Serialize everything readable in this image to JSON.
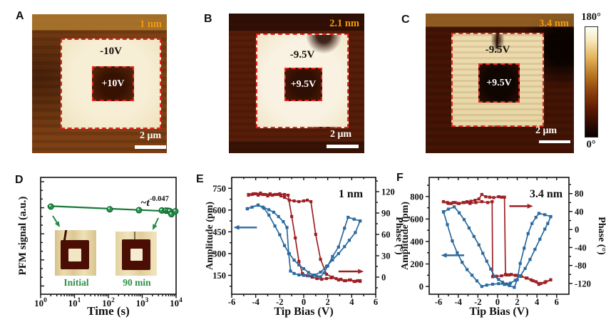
{
  "panels": {
    "a": {
      "letter": "A",
      "thickness": "1 nm",
      "outer_voltage": "-10V",
      "inner_voltage": "+10V",
      "scale_bar": "2 μm"
    },
    "b": {
      "letter": "B",
      "thickness": "2.1 nm",
      "outer_voltage": "-9.5V",
      "inner_voltage": "+9.5V",
      "scale_bar": "2 μm"
    },
    "c": {
      "letter": "C",
      "thickness": "3.4 nm",
      "outer_voltage": "-9.5V",
      "inner_voltage": "+9.5V",
      "scale_bar": "2 μm"
    },
    "colorbar": {
      "top_label": "180°",
      "bottom_label": "0°"
    },
    "d": {
      "letter": "D",
      "inset_left_label": "Initial",
      "inset_right_label": "90 min"
    },
    "e": {
      "letter": "E"
    },
    "f": {
      "letter": "F"
    }
  },
  "colors": {
    "dashed_box": "#e52520",
    "orange_label": "#f0990f",
    "blue_series": "#2b6a9e",
    "red_series": "#9e2024",
    "green_series": "#1f8b45",
    "axis": "#111111"
  },
  "chart_data": [
    {
      "id": "D",
      "type": "scatter",
      "xscale": "log",
      "xlabel": "Time (s)",
      "ylabel": "PFM signal (a.u.)",
      "xlim": [
        1,
        10000
      ],
      "ylim": [
        0,
        1.3
      ],
      "x_ticks": [
        1,
        10,
        100,
        1000,
        10000
      ],
      "x_tick_labels": [
        "10^0",
        "10^1",
        "10^2",
        "10^3",
        "10^4"
      ],
      "annotation": {
        "base": "~t",
        "exponent": "-0.047"
      },
      "series": [
        {
          "name": "pfm-signal-decay",
          "color": "#1f8b45",
          "marker": "ball",
          "x": [
            2,
            110,
            800,
            3800,
            5000,
            5800,
            6500,
            7300,
            9500
          ],
          "y": [
            0.975,
            0.945,
            0.935,
            0.932,
            0.93,
            0.928,
            0.925,
            0.89,
            0.922
          ]
        }
      ],
      "fit_line": {
        "x": [
          1.6,
          9800
        ],
        "y": [
          0.982,
          0.92
        ],
        "color": "#177a3a"
      },
      "insets": [
        "Initial",
        "90 min"
      ]
    },
    {
      "id": "E",
      "type": "line",
      "title": "1 nm",
      "xlabel": "Tip Bias (V)",
      "xlim": [
        -6,
        6
      ],
      "x_ticks": [
        -6,
        -4,
        -2,
        0,
        2,
        4,
        6
      ],
      "x_minor": [
        -5,
        -3,
        -1,
        1,
        3,
        5
      ],
      "left_axis": {
        "label": "Amplitude (pm)",
        "lim": [
          20,
          825
        ],
        "ticks": [
          150,
          300,
          450,
          600,
          750
        ],
        "minor": [
          75,
          225,
          375,
          525,
          675
        ]
      },
      "right_axis": {
        "label": "Phase (°)",
        "lim": [
          -24,
          140
        ],
        "ticks": [
          0,
          30,
          60,
          90,
          120
        ],
        "minor": [
          -15,
          15,
          45,
          75,
          105,
          135
        ]
      },
      "series": [
        {
          "name": "phase-forward",
          "axis": "right",
          "color": "#9e2024",
          "x": [
            -4.6,
            -4.2,
            -3.8,
            -3.4,
            -3.0,
            -2.6,
            -2.2,
            -1.9,
            -1.6,
            -1.2,
            -0.8,
            -0.4,
            0.0,
            0.3,
            0.6,
            1.0,
            1.4,
            1.9,
            2.4,
            2.9,
            3.4,
            3.8,
            4.2,
            4.5,
            4.7
          ],
          "y": [
            116,
            117,
            115,
            116,
            114,
            115,
            116,
            114,
            112,
            108,
            107,
            106,
            107,
            108,
            106,
            60,
            25,
            4,
            0,
            -4,
            -5,
            -4,
            -6,
            -5,
            -6
          ]
        },
        {
          "name": "phase-reverse",
          "axis": "right",
          "color": "#9e2024",
          "x": [
            4.7,
            4.3,
            3.9,
            3.5,
            3.1,
            2.7,
            2.3,
            1.9,
            1.5,
            1.1,
            0.7,
            0.3,
            -0.1,
            -0.4,
            -0.7,
            -1.0,
            -1.3,
            -1.6,
            -2.0,
            -2.4,
            -2.8,
            -3.2,
            -3.6,
            -4.0,
            -4.3,
            -4.6
          ],
          "y": [
            -5,
            -6,
            -4,
            -5,
            -3,
            -2,
            -1,
            -2,
            -3,
            -2,
            0,
            2,
            5,
            22,
            55,
            85,
            115,
            116,
            117,
            116,
            117,
            116,
            118,
            117,
            116,
            115
          ]
        },
        {
          "name": "amplitude-forward",
          "axis": "left",
          "color": "#2b6a9e",
          "x": [
            -4.7,
            -3.8,
            -3.3,
            -2.9,
            -2.4,
            -2.0,
            -1.6,
            -1.2,
            -0.8,
            -0.4,
            0.0,
            0.4,
            0.8,
            1.1,
            1.4,
            1.7,
            2.0,
            2.4,
            2.9,
            3.4,
            3.7,
            4.2,
            4.7
          ],
          "y": [
            610,
            635,
            612,
            565,
            490,
            430,
            355,
            300,
            255,
            222,
            196,
            170,
            152,
            143,
            140,
            168,
            215,
            280,
            345,
            475,
            550,
            537,
            525
          ]
        },
        {
          "name": "amplitude-reverse",
          "axis": "left",
          "color": "#2b6a9e",
          "x": [
            4.7,
            4.3,
            3.8,
            3.4,
            2.9,
            2.4,
            1.9,
            1.4,
            0.9,
            0.4,
            0.0,
            -0.4,
            -0.8,
            -1.1,
            -1.25,
            -1.4,
            -1.7,
            -2.1,
            -2.5,
            -2.9,
            -3.4,
            -3.8,
            -4.3,
            -4.7
          ],
          "y": [
            525,
            445,
            392,
            348,
            300,
            256,
            212,
            172,
            152,
            147,
            150,
            153,
            163,
            180,
            300,
            480,
            520,
            555,
            585,
            602,
            620,
            633,
            620,
            608
          ]
        }
      ],
      "arrows": [
        {
          "name": "amplitude-axis-arrow",
          "axis": "left",
          "color": "#2b6a9e",
          "from": [
            -3.9,
            480
          ],
          "to": [
            -5.85,
            480
          ]
        },
        {
          "name": "phase-axis-arrow",
          "axis": "right",
          "color": "#9e2024",
          "from": [
            2.9,
            8
          ],
          "to": [
            5.0,
            8
          ]
        }
      ]
    },
    {
      "id": "F",
      "type": "line",
      "title": "3.4 nm",
      "xlabel": "Tip Bias (V)",
      "xlim": [
        -6.95,
        7.25
      ],
      "x_ticks": [
        -6,
        -4,
        -2,
        0,
        2,
        4,
        6
      ],
      "x_minor": [
        -5,
        -3,
        -1,
        1,
        3,
        5
      ],
      "left_axis": {
        "label": "Amplitude (pm)",
        "lim": [
          -69,
          970
        ],
        "ticks": [
          0,
          200,
          400,
          600,
          800
        ],
        "minor": [
          100,
          300,
          500,
          700,
          900
        ]
      },
      "right_axis": {
        "label": "Phase (°)",
        "lim": [
          -144,
          116
        ],
        "ticks": [
          80,
          40,
          0,
          -40,
          -80,
          -120
        ],
        "minor": [
          100,
          60,
          20,
          -20,
          -60,
          -100
        ]
      },
      "series": [
        {
          "name": "phase-forward",
          "axis": "right",
          "color": "#9e2024",
          "x": [
            -5.5,
            -5.1,
            -4.7,
            -4.3,
            -3.9,
            -3.5,
            -3.1,
            -2.7,
            -2.3,
            -1.9,
            -1.6,
            -1.2,
            -0.8,
            -0.4,
            0.1,
            0.4,
            0.7,
            0.8,
            1.2,
            1.8,
            2.4,
            3.0,
            3.6,
            4.2,
            4.8,
            5.4
          ],
          "y": [
            62,
            60,
            58,
            60,
            58,
            60,
            62,
            63,
            65,
            68,
            78,
            73,
            72,
            71,
            73,
            72,
            72,
            -100,
            -101,
            -102,
            -104,
            -108,
            -114,
            -122,
            -118,
            -112
          ]
        },
        {
          "name": "phase-reverse",
          "axis": "right",
          "color": "#9e2024",
          "x": [
            5.4,
            4.9,
            4.4,
            3.9,
            3.4,
            2.9,
            2.4,
            1.9,
            1.4,
            0.9,
            0.4,
            -0.1,
            -0.5,
            -0.55,
            -1.0,
            -1.6,
            -2.2,
            -2.8,
            -3.4,
            -4.0,
            -4.5,
            -5.0,
            -5.5
          ],
          "y": [
            -112,
            -116,
            -120,
            -116,
            -112,
            -108,
            -104,
            -102,
            -100,
            -101,
            -103,
            -104,
            -105,
            62,
            60,
            62,
            60,
            58,
            60,
            58,
            60,
            58,
            62
          ]
        },
        {
          "name": "amplitude-outer",
          "axis": "left",
          "color": "#2b6a9e",
          "x": [
            -5.5,
            -5.1,
            -4.6,
            -4.1,
            -3.6,
            -3.1,
            -2.6,
            -2.1,
            -1.6,
            -1.1,
            -0.5,
            0.1,
            0.7,
            1.2,
            1.7,
            2.0,
            2.3,
            2.7,
            3.1,
            3.5,
            3.9,
            4.2,
            4.8,
            5.4
          ],
          "y": [
            665,
            550,
            405,
            300,
            215,
            150,
            100,
            50,
            0,
            12,
            20,
            25,
            18,
            8,
            -8,
            60,
            205,
            340,
            470,
            560,
            615,
            650,
            638,
            622
          ]
        },
        {
          "name": "amplitude-inner",
          "axis": "left",
          "color": "#2b6a9e",
          "x": [
            -5.5,
            -5.0,
            -4.4,
            -3.9,
            -3.4,
            -2.9,
            -2.4,
            -1.9,
            -1.5,
            -1.1,
            -0.7,
            -0.3,
            0.1,
            0.5,
            0.9,
            1.3,
            1.8,
            2.3,
            2.8,
            3.3,
            3.8,
            4.3,
            4.8,
            5.1,
            5.4
          ],
          "y": [
            662,
            688,
            708,
            655,
            595,
            520,
            445,
            370,
            295,
            225,
            155,
            90,
            62,
            38,
            22,
            30,
            55,
            95,
            160,
            240,
            330,
            420,
            510,
            560,
            620
          ]
        }
      ],
      "arrows": [
        {
          "name": "amplitude-axis-arrow",
          "axis": "left",
          "color": "#2b6a9e",
          "from": [
            -3.4,
            277
          ],
          "to": [
            -5.75,
            277
          ]
        },
        {
          "name": "phase-axis-arrow",
          "axis": "right",
          "color": "#9e2024",
          "from": [
            1.2,
            52
          ],
          "to": [
            3.6,
            52
          ]
        }
      ]
    }
  ]
}
